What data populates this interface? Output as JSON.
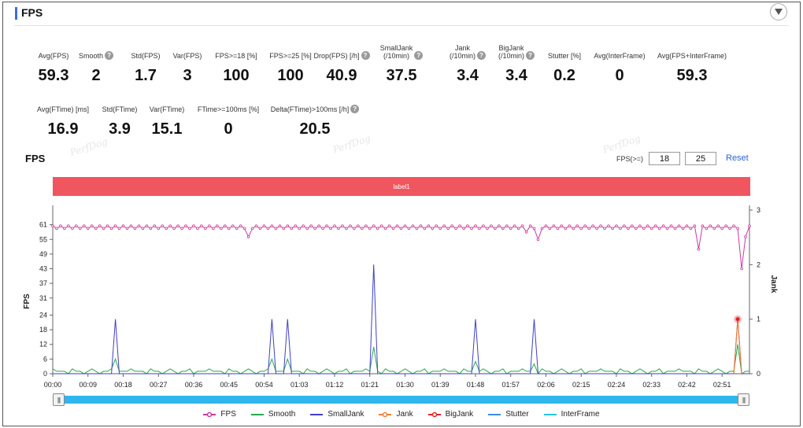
{
  "header": {
    "title": "FPS",
    "collapse_icon": "chevron-down-icon"
  },
  "stats_row1": [
    {
      "label": "Avg(FPS)",
      "value": "59.3",
      "help": false
    },
    {
      "label": "Smooth",
      "value": "2",
      "help": true
    },
    {
      "label": "Std(FPS)",
      "value": "1.7",
      "help": false
    },
    {
      "label": "Var(FPS)",
      "value": "3",
      "help": false
    },
    {
      "label": "FPS>=18 [%]",
      "value": "100",
      "help": false
    },
    {
      "label": "FPS>=25 [%]",
      "value": "100",
      "help": false
    },
    {
      "label": "Drop(FPS) [/h]",
      "value": "40.9",
      "help": true
    },
    {
      "label": "SmallJank\n(/10min)",
      "value": "37.5",
      "help": true
    },
    {
      "label": "Jank\n(/10min)",
      "value": "3.4",
      "help": true
    },
    {
      "label": "BigJank\n(/10min)",
      "value": "3.4",
      "help": true
    },
    {
      "label": "Stutter [%]",
      "value": "0.2",
      "help": false
    },
    {
      "label": "Avg(InterFrame)",
      "value": "0",
      "help": false
    },
    {
      "label": "Avg(FPS+InterFrame)",
      "value": "59.3",
      "help": false
    }
  ],
  "stats_row2": [
    {
      "label": "Avg(FTime) [ms]",
      "value": "16.9",
      "help": false
    },
    {
      "label": "Std(FTime)",
      "value": "3.9",
      "help": false
    },
    {
      "label": "Var(FTime)",
      "value": "15.1",
      "help": false
    },
    {
      "label": "FTime>=100ms [%]",
      "value": "0",
      "help": false
    },
    {
      "label": "Delta(FTime)>100ms [/h]",
      "value": "20.5",
      "help": true
    }
  ],
  "help_glyph": "?",
  "watermark": "PerfDog",
  "section": {
    "title": "FPS"
  },
  "threshold": {
    "label": "FPS(>=)",
    "low": "18",
    "high": "25",
    "reset_label": "Reset"
  },
  "label_band": {
    "text": "label1",
    "color": "#f0565f"
  },
  "slider": {
    "left_grip": "|||",
    "right_grip": "|||"
  },
  "legend": [
    {
      "name": "FPS",
      "color": "#c9399e",
      "marker": "circle"
    },
    {
      "name": "Smooth",
      "color": "#2aa84a",
      "marker": "none"
    },
    {
      "name": "SmallJank",
      "color": "#3f3fc8",
      "marker": "none"
    },
    {
      "name": "Jank",
      "color": "#ee7d3a",
      "marker": "circle"
    },
    {
      "name": "BigJank",
      "color": "#e02222",
      "marker": "circle"
    },
    {
      "name": "Stutter",
      "color": "#3a8ee6",
      "marker": "none"
    },
    {
      "name": "InterFrame",
      "color": "#26c6da",
      "marker": "none"
    }
  ],
  "chart_data": {
    "type": "line",
    "ylabel": "FPS",
    "y2label": "Jank",
    "yticks": [
      0,
      6,
      12,
      18,
      24,
      31,
      37,
      43,
      49,
      55,
      61
    ],
    "ylim": [
      0,
      67
    ],
    "y2ticks": [
      0,
      1,
      2,
      3
    ],
    "y2lim": [
      0,
      3
    ],
    "xticks": [
      "00:00",
      "00:09",
      "00:18",
      "00:27",
      "00:36",
      "00:45",
      "00:54",
      "01:03",
      "01:12",
      "01:21",
      "01:30",
      "01:39",
      "01:48",
      "01:57",
      "02:06",
      "02:15",
      "02:24",
      "02:33",
      "02:42",
      "02:51"
    ],
    "duration_s": 178,
    "fps_dips": [
      [
        50,
        56
      ],
      [
        121,
        58
      ],
      [
        124,
        55
      ],
      [
        165,
        51
      ],
      [
        176,
        43
      ],
      [
        177,
        56
      ]
    ],
    "fps_base": 60,
    "smalljank_spikes": [
      [
        16,
        1
      ],
      [
        56,
        1
      ],
      [
        60,
        1
      ],
      [
        82,
        2
      ],
      [
        108,
        1
      ],
      [
        123,
        1
      ],
      [
        175,
        1
      ]
    ],
    "bigjank_points": [
      [
        175,
        1
      ]
    ],
    "smooth_peaks": [
      [
        16,
        6
      ],
      [
        56,
        6
      ],
      [
        60,
        6
      ],
      [
        82,
        11
      ],
      [
        108,
        5
      ],
      [
        123,
        4
      ],
      [
        175,
        12
      ]
    ]
  }
}
